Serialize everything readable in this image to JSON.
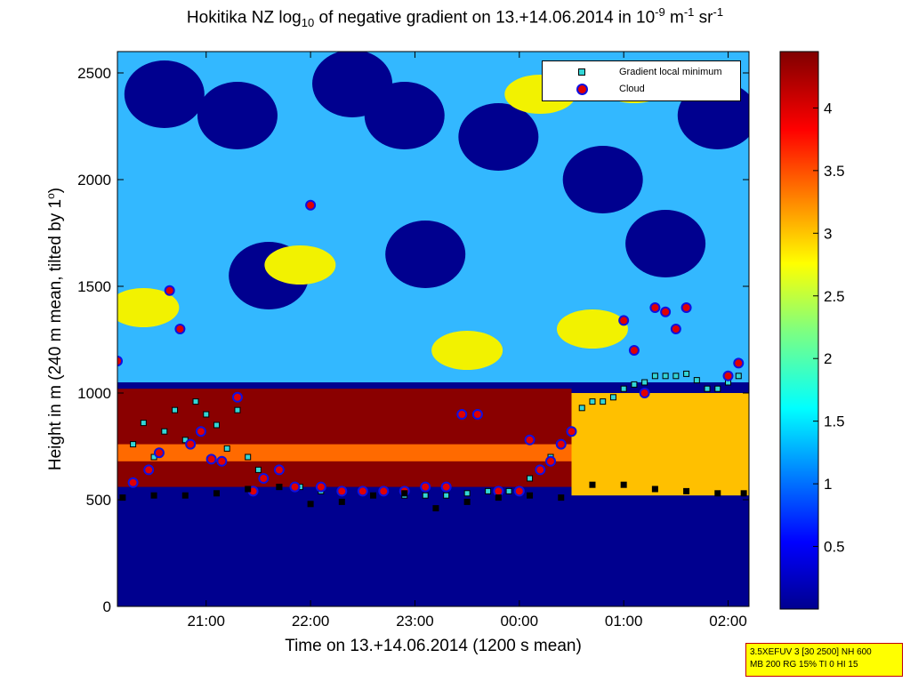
{
  "chart_data": {
    "type": "heatmap",
    "title_parts": {
      "prefix": "Hokitika NZ log",
      "sub": "10",
      "middle": " of negative gradient on 13.+14.06.2014 in 10",
      "sup1": "-9",
      "m": " m",
      "sup2": "-1",
      "sr": " sr",
      "sup3": "-1"
    },
    "xlabel": "Time on 13.+14.06.2014 (1200 s mean)",
    "ylabel_parts": {
      "main": "Height in m (240 m mean, tilted by 1",
      "sup": "o",
      "end": ")"
    },
    "x_tick_labels": [
      "21:00",
      "22:00",
      "23:00",
      "00:00",
      "01:00",
      "02:00"
    ],
    "x_tick_hours": [
      21,
      22,
      23,
      24,
      25,
      26
    ],
    "xlim_hours": [
      20.15,
      26.2
    ],
    "y_ticks": [
      0,
      500,
      1000,
      1500,
      2000,
      2500
    ],
    "ylim": [
      0,
      2600
    ],
    "colorbar": {
      "tick_labels": [
        "0.5",
        "1",
        "1.5",
        "2",
        "2.5",
        "3",
        "3.5",
        "4"
      ],
      "tick_values": [
        0.5,
        1,
        1.5,
        2,
        2.5,
        3,
        3.5,
        4
      ],
      "range": [
        0,
        4.45
      ],
      "colormap": "jet"
    },
    "legend": {
      "placement": "top-right",
      "entries": [
        "Gradient local minimum",
        "Cloud"
      ]
    },
    "series": [
      {
        "name": "Gradient local minimum",
        "marker": "square",
        "color": "#33d6d6",
        "x_hours": [
          20.3,
          20.4,
          20.5,
          20.6,
          20.7,
          20.8,
          20.9,
          21.0,
          21.1,
          21.2,
          21.3,
          21.4,
          21.5,
          21.7,
          21.9,
          22.1,
          22.3,
          22.5,
          22.7,
          22.9,
          23.1,
          23.3,
          23.5,
          23.7,
          23.9,
          24.1,
          24.3,
          24.5,
          24.6,
          24.7,
          24.8,
          24.9,
          25.0,
          25.1,
          25.2,
          25.3,
          25.4,
          25.5,
          25.6,
          25.7,
          25.8,
          25.9,
          26.0,
          26.1
        ],
        "y": [
          760,
          860,
          700,
          820,
          920,
          780,
          960,
          900,
          850,
          740,
          920,
          700,
          640,
          560,
          560,
          540,
          540,
          540,
          540,
          520,
          520,
          520,
          530,
          540,
          540,
          600,
          700,
          820,
          930,
          960,
          960,
          980,
          1020,
          1040,
          1050,
          1080,
          1080,
          1080,
          1090,
          1060,
          1020,
          1020,
          1050,
          1080
        ]
      },
      {
        "name": "Cloud",
        "marker": "circle",
        "color": "#e00000",
        "x_hours": [
          20.15,
          20.3,
          20.45,
          20.55,
          20.65,
          20.75,
          20.85,
          20.95,
          21.05,
          21.15,
          21.3,
          21.45,
          21.55,
          21.7,
          21.85,
          22.0,
          22.1,
          22.3,
          22.5,
          22.7,
          22.9,
          23.1,
          23.3,
          23.45,
          23.6,
          23.8,
          24.0,
          24.1,
          24.2,
          24.3,
          24.4,
          24.5,
          25.0,
          25.1,
          25.2,
          25.3,
          25.4,
          25.5,
          25.6,
          26.0,
          26.1
        ],
        "y": [
          1150,
          580,
          640,
          720,
          1480,
          1300,
          760,
          820,
          690,
          680,
          980,
          540,
          600,
          640,
          560,
          1880,
          560,
          540,
          540,
          540,
          540,
          560,
          560,
          900,
          900,
          540,
          540,
          780,
          640,
          680,
          760,
          820,
          1340,
          1200,
          1000,
          1400,
          1380,
          1300,
          1400,
          1080,
          1140
        ]
      },
      {
        "name": "",
        "marker": "square",
        "color": "#000000",
        "x_hours": [
          20.2,
          20.5,
          20.8,
          21.1,
          21.4,
          21.7,
          22.0,
          22.3,
          22.6,
          22.9,
          23.2,
          23.5,
          23.8,
          24.1,
          24.4,
          24.7,
          25.0,
          25.3,
          25.6,
          25.9,
          26.15
        ],
        "y": [
          510,
          520,
          520,
          530,
          550,
          560,
          480,
          490,
          520,
          530,
          460,
          490,
          510,
          520,
          510,
          570,
          570,
          550,
          540,
          530,
          530
        ]
      }
    ]
  },
  "info_box": {
    "line1": "3.5XEFUV 3 [30 2500] NH 600",
    "line2": "MB 200 RG 15% TI 0 HI 15"
  }
}
